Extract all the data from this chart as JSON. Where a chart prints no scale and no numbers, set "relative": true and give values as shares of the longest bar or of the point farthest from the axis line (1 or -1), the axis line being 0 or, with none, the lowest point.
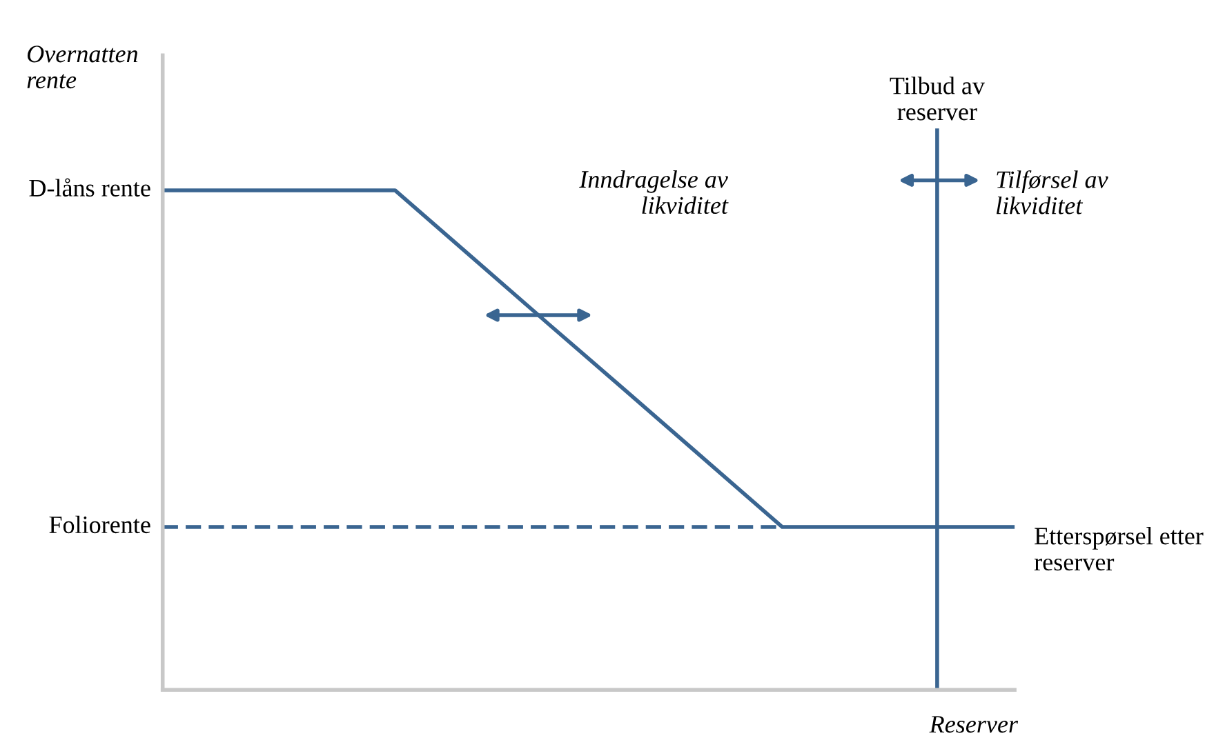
{
  "chart_data": {
    "type": "line",
    "relative": true,
    "xlabel": "Reserver",
    "ylabel": "Overnatten rente",
    "categories": [
      null,
      null,
      null,
      null,
      null,
      null,
      null,
      null,
      null,
      null,
      null,
      null
    ],
    "series": [
      {
        "name": "Etterspørsel etter reserver",
        "color": "#3a6591",
        "values": [
          1,
          1,
          1,
          1,
          0.865,
          0.73,
          0.596,
          0.461,
          0.326,
          0.326,
          0.326,
          0.326
        ]
      },
      {
        "color": "#3a6591",
        "line_style": "dashed",
        "values": [
          0.326,
          0.326,
          0.326,
          0.326,
          0.326,
          0.326,
          0.326,
          0.326,
          0.326,
          null,
          null,
          null
        ]
      }
    ],
    "annotations": [
      "D-låns rente",
      "Foliorente",
      "Inndragelse av likviditet",
      "Tilførsel av likviditet",
      "Tilbud av reserver"
    ],
    "grid": false,
    "legend": false,
    "marker": "none",
    "line_style": "solid"
  }
}
